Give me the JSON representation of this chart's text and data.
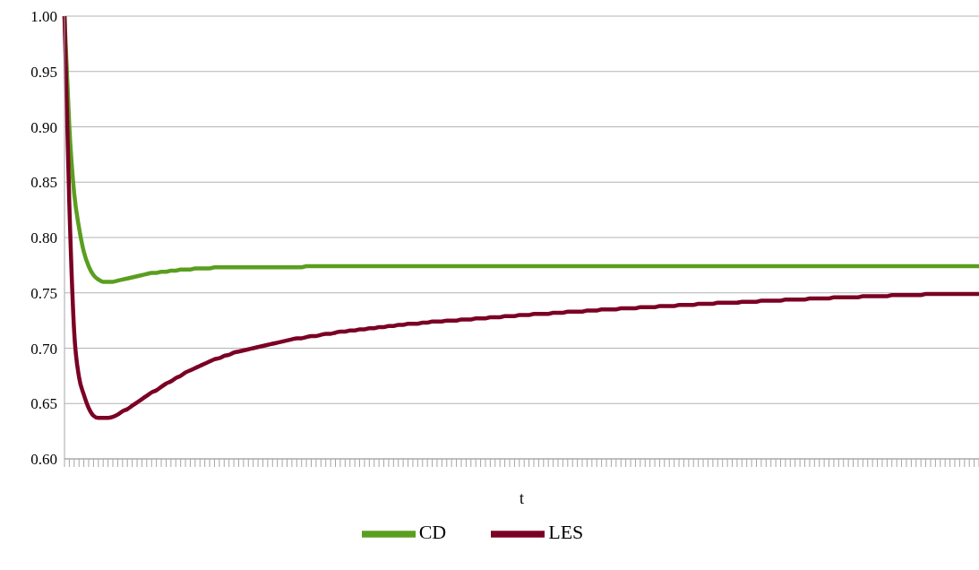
{
  "chart_data": {
    "type": "line",
    "xlabel": "t",
    "categories": [
      null,
      null,
      null,
      null,
      null,
      null,
      null,
      null,
      null,
      null,
      null,
      null,
      null,
      null,
      null,
      null,
      null,
      null,
      null,
      null,
      null,
      null,
      null,
      null,
      null,
      null,
      null,
      null,
      null,
      null,
      null,
      null,
      null,
      null,
      null,
      null,
      null,
      null,
      null,
      null,
      null,
      null,
      null,
      null,
      null,
      null,
      null,
      null,
      null,
      null,
      null,
      null,
      null,
      null,
      null,
      null,
      null,
      null,
      null,
      null,
      null,
      null,
      null,
      null,
      null,
      null,
      null,
      null,
      null,
      null,
      null,
      null,
      null,
      null,
      null,
      null,
      null,
      null,
      null,
      null,
      null,
      null,
      null,
      null,
      null,
      null,
      null,
      null,
      null,
      null,
      null,
      null,
      null,
      null,
      null,
      null,
      null,
      null,
      null,
      null,
      null,
      null,
      null,
      null,
      null,
      null,
      null,
      null,
      null,
      null,
      null,
      null,
      null,
      null,
      null,
      null,
      null,
      null,
      null,
      null,
      null,
      null,
      null,
      null,
      null,
      null,
      null,
      null,
      null,
      null,
      null,
      null,
      null,
      null,
      null,
      null,
      null,
      null,
      null,
      null,
      null,
      null,
      null,
      null,
      null,
      null,
      null,
      null,
      null,
      null,
      null,
      null,
      null,
      null,
      null,
      null,
      null,
      null,
      null,
      null,
      null,
      null,
      null,
      null,
      null,
      null,
      null,
      null,
      null,
      null,
      null,
      null,
      null,
      null,
      null,
      null,
      null,
      null,
      null,
      null,
      null,
      null,
      null,
      null,
      null,
      null,
      null,
      null,
      null,
      null
    ],
    "series": [
      {
        "name": "CD",
        "color": "#5a9e1f",
        "values": [
          1.0,
          0.9,
          0.84,
          0.809,
          0.787,
          0.774,
          0.766,
          0.762,
          0.76,
          0.76,
          0.76,
          0.761,
          0.762,
          0.763,
          0.764,
          0.765,
          0.766,
          0.767,
          0.768,
          0.768,
          0.769,
          0.769,
          0.77,
          0.77,
          0.771,
          0.771,
          0.771,
          0.772,
          0.772,
          0.772,
          0.772,
          0.773,
          0.773,
          0.773,
          0.773,
          0.773,
          0.773,
          0.773,
          0.773,
          0.773,
          0.773,
          0.773,
          0.773,
          0.773,
          0.773,
          0.773,
          0.773,
          0.773,
          0.773,
          0.773,
          0.774,
          0.774,
          0.774,
          0.774,
          0.774,
          0.774,
          0.774,
          0.774,
          0.774,
          0.774,
          0.774,
          0.774,
          0.774,
          0.774,
          0.774,
          0.774,
          0.774,
          0.774,
          0.774,
          0.774,
          0.774,
          0.774,
          0.774,
          0.774,
          0.774,
          0.774,
          0.774,
          0.774,
          0.774,
          0.774,
          0.774,
          0.774,
          0.774,
          0.774,
          0.774,
          0.774,
          0.774,
          0.774,
          0.774,
          0.774,
          0.774,
          0.774,
          0.774,
          0.774,
          0.774,
          0.774,
          0.774,
          0.774,
          0.774,
          0.774,
          0.774,
          0.774,
          0.774,
          0.774,
          0.774,
          0.774,
          0.774,
          0.774,
          0.774,
          0.774,
          0.774,
          0.774,
          0.774,
          0.774,
          0.774,
          0.774,
          0.774,
          0.774,
          0.774,
          0.774,
          0.774,
          0.774,
          0.774,
          0.774,
          0.774,
          0.774,
          0.774,
          0.774,
          0.774,
          0.774,
          0.774,
          0.774,
          0.774,
          0.774,
          0.774,
          0.774,
          0.774,
          0.774,
          0.774,
          0.774,
          0.774,
          0.774,
          0.774,
          0.774,
          0.774,
          0.774,
          0.774,
          0.774,
          0.774,
          0.774,
          0.774,
          0.774,
          0.774,
          0.774,
          0.774,
          0.774,
          0.774,
          0.774,
          0.774,
          0.774,
          0.774,
          0.774,
          0.774,
          0.774,
          0.774,
          0.774,
          0.774,
          0.774,
          0.774,
          0.774,
          0.774,
          0.774,
          0.774,
          0.774,
          0.774,
          0.774,
          0.774,
          0.774,
          0.774,
          0.774,
          0.774,
          0.774,
          0.774,
          0.774,
          0.774,
          0.774,
          0.774,
          0.774,
          0.774,
          0.774
        ]
      },
      {
        "name": "LES",
        "color": "#7b0024",
        "values": [
          1.0,
          0.83,
          0.715,
          0.674,
          0.658,
          0.646,
          0.639,
          0.637,
          0.637,
          0.637,
          0.638,
          0.64,
          0.643,
          0.645,
          0.648,
          0.651,
          0.654,
          0.657,
          0.66,
          0.662,
          0.665,
          0.668,
          0.67,
          0.673,
          0.675,
          0.678,
          0.68,
          0.682,
          0.684,
          0.686,
          0.688,
          0.69,
          0.691,
          0.693,
          0.694,
          0.696,
          0.697,
          0.698,
          0.699,
          0.7,
          0.701,
          0.702,
          0.703,
          0.704,
          0.705,
          0.706,
          0.707,
          0.708,
          0.709,
          0.709,
          0.71,
          0.711,
          0.711,
          0.712,
          0.713,
          0.713,
          0.714,
          0.715,
          0.715,
          0.716,
          0.716,
          0.717,
          0.717,
          0.718,
          0.718,
          0.719,
          0.719,
          0.72,
          0.72,
          0.721,
          0.721,
          0.722,
          0.722,
          0.722,
          0.723,
          0.723,
          0.724,
          0.724,
          0.724,
          0.725,
          0.725,
          0.725,
          0.726,
          0.726,
          0.726,
          0.727,
          0.727,
          0.727,
          0.728,
          0.728,
          0.728,
          0.729,
          0.729,
          0.729,
          0.73,
          0.73,
          0.73,
          0.731,
          0.731,
          0.731,
          0.731,
          0.732,
          0.732,
          0.732,
          0.733,
          0.733,
          0.733,
          0.733,
          0.734,
          0.734,
          0.734,
          0.735,
          0.735,
          0.735,
          0.735,
          0.736,
          0.736,
          0.736,
          0.736,
          0.737,
          0.737,
          0.737,
          0.737,
          0.738,
          0.738,
          0.738,
          0.738,
          0.739,
          0.739,
          0.739,
          0.739,
          0.74,
          0.74,
          0.74,
          0.74,
          0.741,
          0.741,
          0.741,
          0.741,
          0.741,
          0.742,
          0.742,
          0.742,
          0.742,
          0.743,
          0.743,
          0.743,
          0.743,
          0.743,
          0.744,
          0.744,
          0.744,
          0.744,
          0.744,
          0.745,
          0.745,
          0.745,
          0.745,
          0.745,
          0.746,
          0.746,
          0.746,
          0.746,
          0.746,
          0.746,
          0.747,
          0.747,
          0.747,
          0.747,
          0.747,
          0.747,
          0.748,
          0.748,
          0.748,
          0.748,
          0.748,
          0.748,
          0.748,
          0.749,
          0.749,
          0.749,
          0.749,
          0.749,
          0.749,
          0.749,
          0.749,
          0.749,
          0.749,
          0.749,
          0.749
        ]
      }
    ],
    "ylim": [
      0.6,
      1.0
    ],
    "yticks": [
      {
        "value": 0.6,
        "label": "0.60"
      },
      {
        "value": 0.65,
        "label": "0.65"
      },
      {
        "value": 0.7,
        "label": "0.70"
      },
      {
        "value": 0.75,
        "label": "0.75"
      },
      {
        "value": 0.8,
        "label": "0.80"
      },
      {
        "value": 0.85,
        "label": "0.85"
      },
      {
        "value": 0.9,
        "label": "0.90"
      },
      {
        "value": 0.95,
        "label": "0.95"
      },
      {
        "value": 1.0,
        "label": "1.00"
      }
    ],
    "grid": "y",
    "legend": "bottom",
    "marker": "none",
    "line_style": "solid"
  }
}
